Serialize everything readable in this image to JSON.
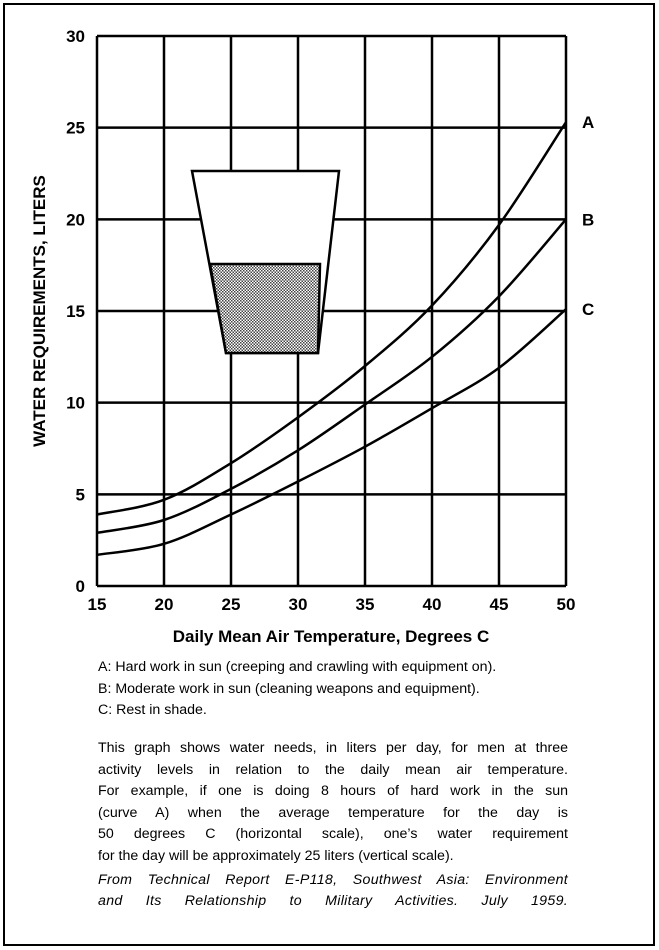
{
  "chart_data": {
    "type": "line",
    "title": "",
    "xlabel": "Daily Mean Air Temperature, Degrees C",
    "ylabel": "WATER REQUIREMENTS, LITERS",
    "xlim": [
      15,
      50
    ],
    "ylim": [
      0,
      30
    ],
    "x_ticks": [
      "15",
      "20",
      "25",
      "30",
      "35",
      "40",
      "45",
      "50"
    ],
    "y_ticks": [
      "0",
      "5",
      "10",
      "15",
      "20",
      "25",
      "30"
    ],
    "grid": true,
    "x": [
      15,
      20,
      25,
      30,
      35,
      40,
      45,
      50
    ],
    "series": [
      {
        "name": "A",
        "values": [
          3.9,
          4.7,
          6.7,
          9.2,
          12.0,
          15.3,
          19.7,
          25.3
        ]
      },
      {
        "name": "B",
        "values": [
          2.9,
          3.6,
          5.3,
          7.4,
          9.9,
          12.5,
          15.8,
          20.0
        ]
      },
      {
        "name": "C",
        "values": [
          1.7,
          2.3,
          3.9,
          5.7,
          7.6,
          9.7,
          11.9,
          15.1
        ]
      }
    ],
    "legend_placement": "right-end-of-curves"
  },
  "legend": [
    "A: Hard work in sun (creeping and crawling with equipment on).",
    "B: Moderate work in sun (cleaning weapons and equipment).",
    "C: Rest in shade."
  ],
  "description_lines": [
    "This graph shows water needs, in liters per day, for men at three",
    "activity levels in relation to the daily mean air temperature.",
    "For example, if one is doing 8 hours of hard work in the sun",
    "(curve A) when the average temperature for the day is",
    "50 degrees C (horizontal scale), one’s water requirement",
    "for the day will be approximately 25 liters (vertical scale)."
  ],
  "citation_lines": [
    "From Technical Report E-P118, Southwest Asia: Environment",
    "and Its Relationship to Military Activities. July 1959."
  ]
}
